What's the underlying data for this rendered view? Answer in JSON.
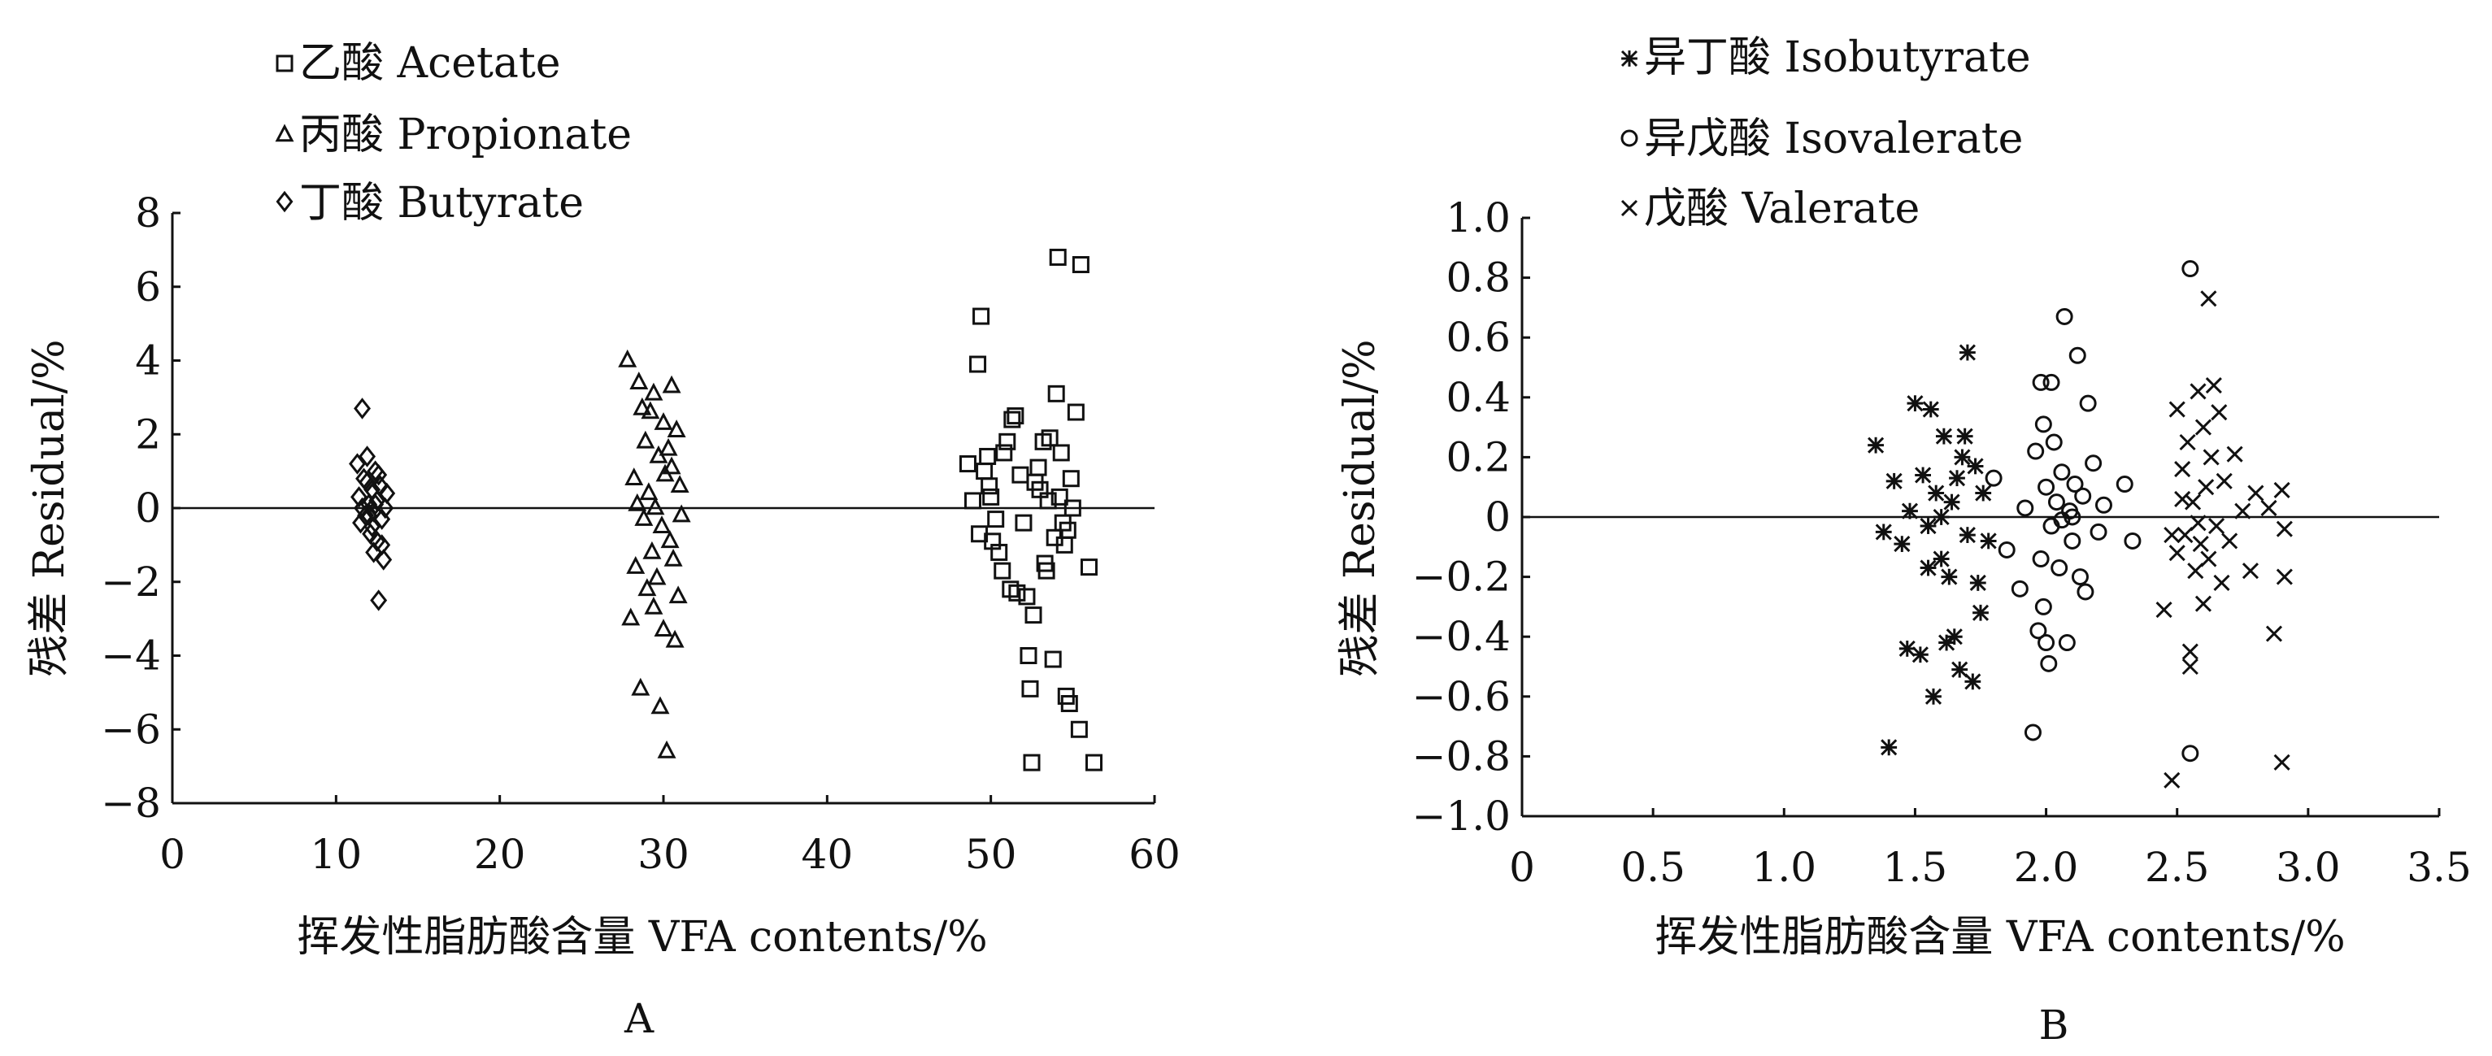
{
  "chart_data": [
    {
      "panel_label": "A",
      "type": "scatter",
      "xlabel": "挥发性脂肪酸含量 VFA contents/%",
      "ylabel": "残差  Residual/%",
      "xlim": [
        0,
        60
      ],
      "ylim": [
        -8,
        8
      ],
      "x_ticks": [
        "0",
        "10",
        "20",
        "30",
        "40",
        "50",
        "60"
      ],
      "y_ticks": [
        "−8",
        "−6",
        "−4",
        "−2",
        "0",
        "2",
        "4",
        "6",
        "8"
      ],
      "reference_line_y": 0,
      "legend_position": "top-left",
      "series": [
        {
          "name": "乙酸 Acetate",
          "marker": "square",
          "points": [
            [
              48.6,
              1.2
            ],
            [
              48.9,
              0.2
            ],
            [
              49.2,
              3.9
            ],
            [
              49.4,
              5.2
            ],
            [
              49.6,
              1.0
            ],
            [
              49.3,
              -0.7
            ],
            [
              49.8,
              1.4
            ],
            [
              50.0,
              0.3
            ],
            [
              50.3,
              -0.3
            ],
            [
              50.5,
              -1.2
            ],
            [
              50.7,
              -1.7
            ],
            [
              50.8,
              1.5
            ],
            [
              51.0,
              1.8
            ],
            [
              51.2,
              -2.2
            ],
            [
              51.5,
              2.5
            ],
            [
              51.6,
              -2.3
            ],
            [
              51.8,
              0.9
            ],
            [
              52.0,
              -0.4
            ],
            [
              52.2,
              -2.4
            ],
            [
              52.3,
              -4.0
            ],
            [
              52.4,
              -4.9
            ],
            [
              52.5,
              -6.9
            ],
            [
              52.6,
              -2.9
            ],
            [
              52.7,
              0.7
            ],
            [
              53.0,
              0.5
            ],
            [
              53.2,
              1.8
            ],
            [
              53.4,
              -1.7
            ],
            [
              53.5,
              0.2
            ],
            [
              53.6,
              1.9
            ],
            [
              53.8,
              -4.1
            ],
            [
              53.9,
              -0.8
            ],
            [
              54.0,
              3.1
            ],
            [
              54.1,
              6.8
            ],
            [
              54.2,
              0.3
            ],
            [
              54.3,
              1.5
            ],
            [
              54.4,
              -0.4
            ],
            [
              54.5,
              -1.0
            ],
            [
              54.6,
              -5.1
            ],
            [
              54.7,
              -0.6
            ],
            [
              54.8,
              -5.3
            ],
            [
              55.0,
              0.0
            ],
            [
              55.2,
              2.6
            ],
            [
              55.4,
              -6.0
            ],
            [
              55.5,
              6.6
            ],
            [
              56.0,
              -1.6
            ],
            [
              56.3,
              -6.9
            ],
            [
              52.9,
              1.1
            ],
            [
              51.3,
              2.4
            ],
            [
              50.1,
              -0.9
            ],
            [
              53.3,
              -1.5
            ],
            [
              54.9,
              0.8
            ],
            [
              49.9,
              0.6
            ]
          ]
        },
        {
          "name": "丙酸 Propionate",
          "marker": "triangle",
          "points": [
            [
              27.8,
              4.0
            ],
            [
              28.0,
              -3.0
            ],
            [
              28.2,
              0.8
            ],
            [
              28.3,
              -1.6
            ],
            [
              28.5,
              3.4
            ],
            [
              28.6,
              -4.9
            ],
            [
              28.7,
              2.7
            ],
            [
              28.8,
              -0.3
            ],
            [
              28.9,
              1.8
            ],
            [
              29.0,
              -2.2
            ],
            [
              29.1,
              0.4
            ],
            [
              29.2,
              2.6
            ],
            [
              29.3,
              -1.2
            ],
            [
              29.4,
              3.1
            ],
            [
              29.5,
              0.0
            ],
            [
              29.6,
              -1.9
            ],
            [
              29.7,
              1.4
            ],
            [
              29.8,
              -5.4
            ],
            [
              29.9,
              -0.5
            ],
            [
              30.0,
              -3.3
            ],
            [
              30.1,
              0.9
            ],
            [
              30.2,
              -6.6
            ],
            [
              30.3,
              1.6
            ],
            [
              30.4,
              -0.9
            ],
            [
              30.5,
              3.3
            ],
            [
              30.6,
              -1.4
            ],
            [
              30.7,
              -3.6
            ],
            [
              30.8,
              2.1
            ],
            [
              30.9,
              -2.4
            ],
            [
              31.0,
              0.6
            ],
            [
              31.1,
              -0.2
            ],
            [
              30.0,
              2.3
            ],
            [
              29.4,
              -2.7
            ],
            [
              28.4,
              0.1
            ],
            [
              30.5,
              1.1
            ]
          ]
        },
        {
          "name": "丁酸 Butyrate",
          "marker": "diamond",
          "points": [
            [
              11.3,
              1.2
            ],
            [
              11.4,
              0.3
            ],
            [
              11.5,
              -0.4
            ],
            [
              11.6,
              2.7
            ],
            [
              11.7,
              0.8
            ],
            [
              11.8,
              -0.2
            ],
            [
              11.9,
              1.4
            ],
            [
              12.0,
              0.1
            ],
            [
              12.1,
              -0.7
            ],
            [
              12.2,
              0.5
            ],
            [
              12.3,
              -0.1
            ],
            [
              12.4,
              1.0
            ],
            [
              12.5,
              -0.9
            ],
            [
              12.5,
              0.2
            ],
            [
              12.6,
              -2.5
            ],
            [
              12.7,
              0.6
            ],
            [
              12.8,
              -0.3
            ],
            [
              12.9,
              -1.4
            ],
            [
              13.0,
              0.0
            ],
            [
              13.1,
              0.4
            ],
            [
              12.2,
              -0.5
            ],
            [
              11.9,
              0.7
            ],
            [
              12.4,
              0.1
            ],
            [
              12.8,
              -1.0
            ],
            [
              12.0,
              -0.2
            ],
            [
              12.6,
              0.9
            ],
            [
              11.6,
              0.0
            ],
            [
              12.3,
              -1.2
            ]
          ]
        }
      ]
    },
    {
      "panel_label": "B",
      "type": "scatter",
      "xlabel": "挥发性脂肪酸含量 VFA contents/%",
      "ylabel": "残差  Residual/%",
      "xlim": [
        0,
        3.5
      ],
      "ylim": [
        -1.0,
        1.0
      ],
      "x_ticks": [
        "0",
        "0.5",
        "1.0",
        "1.5",
        "2.0",
        "2.5",
        "3.0",
        "3.5"
      ],
      "y_ticks": [
        "−1.0",
        "−0.8",
        "−0.6",
        "−0.4",
        "−0.2",
        "0",
        "0.2",
        "0.4",
        "0.6",
        "0.8",
        "1.0"
      ],
      "reference_line_y": 0,
      "legend_position": "top-left",
      "series": [
        {
          "name": "异丁酸  Isobutyrate",
          "marker": "asterisk",
          "points": [
            [
              1.35,
              0.24
            ],
            [
              1.38,
              -0.05
            ],
            [
              1.4,
              -0.77
            ],
            [
              1.42,
              0.12
            ],
            [
              1.45,
              -0.09
            ],
            [
              1.48,
              0.02
            ],
            [
              1.5,
              0.38
            ],
            [
              1.52,
              -0.46
            ],
            [
              1.53,
              0.14
            ],
            [
              1.55,
              -0.03
            ],
            [
              1.56,
              0.36
            ],
            [
              1.57,
              -0.6
            ],
            [
              1.58,
              0.08
            ],
            [
              1.6,
              -0.14
            ],
            [
              1.61,
              0.27
            ],
            [
              1.62,
              -0.42
            ],
            [
              1.63,
              -0.2
            ],
            [
              1.64,
              0.05
            ],
            [
              1.65,
              -0.4
            ],
            [
              1.66,
              0.13
            ],
            [
              1.67,
              -0.51
            ],
            [
              1.68,
              0.2
            ],
            [
              1.7,
              0.55
            ],
            [
              1.7,
              -0.06
            ],
            [
              1.72,
              -0.55
            ],
            [
              1.73,
              0.17
            ],
            [
              1.74,
              -0.22
            ],
            [
              1.75,
              -0.32
            ],
            [
              1.76,
              0.08
            ],
            [
              1.78,
              -0.08
            ],
            [
              1.6,
              0.0
            ],
            [
              1.55,
              -0.17
            ],
            [
              1.69,
              0.27
            ],
            [
              1.47,
              -0.44
            ]
          ]
        },
        {
          "name": "异戊酸 Isovalerate",
          "marker": "circle",
          "points": [
            [
              1.8,
              0.13
            ],
            [
              1.85,
              -0.11
            ],
            [
              1.9,
              -0.24
            ],
            [
              1.92,
              0.03
            ],
            [
              1.95,
              -0.72
            ],
            [
              1.96,
              0.22
            ],
            [
              1.97,
              -0.38
            ],
            [
              1.98,
              0.45
            ],
            [
              1.98,
              -0.14
            ],
            [
              1.99,
              0.31
            ],
            [
              2.0,
              -0.42
            ],
            [
              2.0,
              0.1
            ],
            [
              2.01,
              -0.49
            ],
            [
              2.02,
              0.45
            ],
            [
              2.02,
              -0.03
            ],
            [
              2.03,
              0.25
            ],
            [
              2.04,
              0.05
            ],
            [
              2.05,
              -0.17
            ],
            [
              2.06,
              0.15
            ],
            [
              2.07,
              0.67
            ],
            [
              2.08,
              -0.42
            ],
            [
              2.09,
              0.02
            ],
            [
              2.1,
              -0.08
            ],
            [
              2.11,
              0.11
            ],
            [
              2.12,
              0.54
            ],
            [
              2.13,
              -0.2
            ],
            [
              2.14,
              0.07
            ],
            [
              2.15,
              -0.25
            ],
            [
              2.16,
              0.38
            ],
            [
              2.18,
              0.18
            ],
            [
              2.2,
              -0.05
            ],
            [
              2.22,
              0.04
            ],
            [
              2.3,
              0.11
            ],
            [
              2.33,
              -0.08
            ],
            [
              2.55,
              0.83
            ],
            [
              2.55,
              -0.79
            ],
            [
              2.1,
              0.0
            ],
            [
              1.99,
              -0.3
            ],
            [
              2.06,
              -0.01
            ]
          ]
        },
        {
          "name": "戊酸  Valerate",
          "marker": "cross",
          "points": [
            [
              2.45,
              -0.31
            ],
            [
              2.48,
              -0.88
            ],
            [
              2.5,
              0.36
            ],
            [
              2.5,
              -0.12
            ],
            [
              2.52,
              0.16
            ],
            [
              2.53,
              -0.06
            ],
            [
              2.54,
              0.25
            ],
            [
              2.55,
              -0.45
            ],
            [
              2.55,
              -0.5
            ],
            [
              2.56,
              0.05
            ],
            [
              2.57,
              -0.18
            ],
            [
              2.58,
              0.42
            ],
            [
              2.59,
              -0.09
            ],
            [
              2.6,
              0.3
            ],
            [
              2.61,
              0.1
            ],
            [
              2.62,
              0.73
            ],
            [
              2.62,
              -0.14
            ],
            [
              2.63,
              0.2
            ],
            [
              2.64,
              0.44
            ],
            [
              2.65,
              -0.03
            ],
            [
              2.66,
              0.35
            ],
            [
              2.67,
              -0.22
            ],
            [
              2.68,
              0.12
            ],
            [
              2.7,
              -0.08
            ],
            [
              2.72,
              0.21
            ],
            [
              2.75,
              0.02
            ],
            [
              2.78,
              -0.18
            ],
            [
              2.8,
              0.08
            ],
            [
              2.85,
              0.03
            ],
            [
              2.87,
              -0.39
            ],
            [
              2.9,
              -0.82
            ],
            [
              2.9,
              0.09
            ],
            [
              2.91,
              -0.04
            ],
            [
              2.91,
              -0.2
            ],
            [
              2.48,
              -0.06
            ],
            [
              2.58,
              -0.02
            ],
            [
              2.52,
              0.06
            ],
            [
              2.6,
              -0.29
            ]
          ]
        }
      ]
    }
  ]
}
